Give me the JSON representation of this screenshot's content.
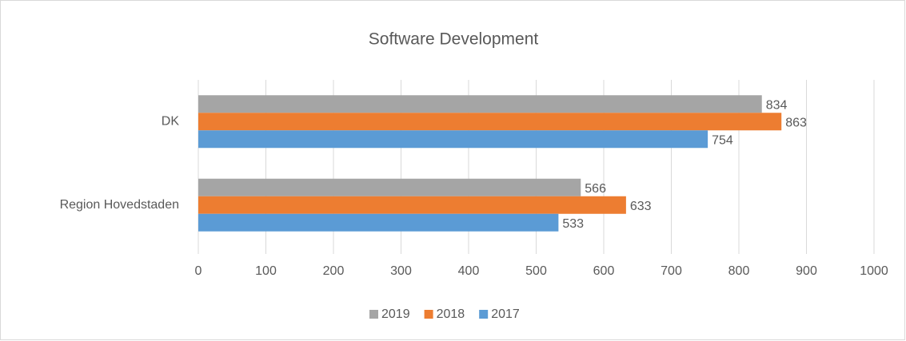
{
  "chart_data": {
    "type": "bar",
    "orientation": "horizontal",
    "title": "Software Development",
    "categories": [
      "DK",
      "Region Hovedstaden"
    ],
    "series": [
      {
        "name": "2019",
        "color": "#a5a5a5",
        "values": [
          834,
          566
        ]
      },
      {
        "name": "2018",
        "color": "#ed7d31",
        "values": [
          863,
          633
        ]
      },
      {
        "name": "2017",
        "color": "#5b9bd5",
        "values": [
          754,
          533
        ]
      }
    ],
    "xlim": [
      0,
      1000
    ],
    "xticks": [
      0,
      100,
      200,
      300,
      400,
      500,
      600,
      700,
      800,
      900,
      1000
    ],
    "grid": true,
    "legend": "bottom"
  }
}
